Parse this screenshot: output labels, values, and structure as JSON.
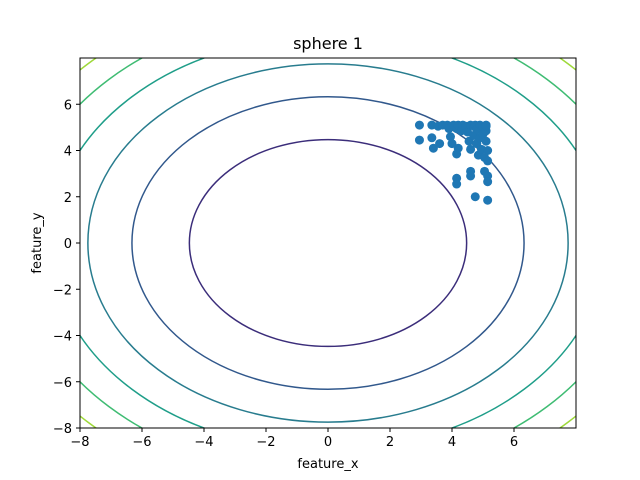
{
  "chart_data": {
    "type": "scatter",
    "title": "sphere 1",
    "xlabel": "feature_x",
    "ylabel": "feature_y",
    "xlim": [
      -8,
      8
    ],
    "ylim": [
      -8,
      8
    ],
    "x_ticks": [
      -8,
      -6,
      -4,
      -2,
      0,
      2,
      4,
      6
    ],
    "y_ticks": [
      -8,
      -6,
      -4,
      -2,
      0,
      2,
      4,
      6
    ],
    "x_tick_labels": [
      "−8",
      "−6",
      "−4",
      "−2",
      "0",
      "2",
      "4",
      "6"
    ],
    "y_tick_labels": [
      "−8",
      "−6",
      "−4",
      "−2",
      "0",
      "2",
      "4",
      "6"
    ],
    "grid": false,
    "contour": {
      "function": "x^2 + y^2",
      "levels": [
        20,
        40,
        60,
        80,
        100,
        120
      ],
      "colors": [
        "#3b2d7a",
        "#31588c",
        "#287c8e",
        "#1f9e89",
        "#3fbc73",
        "#9ed93a"
      ]
    },
    "scatter": {
      "color": "#1f77b4",
      "points": [
        [
          2.95,
          5.1
        ],
        [
          2.95,
          4.45
        ],
        [
          3.35,
          5.1
        ],
        [
          3.35,
          4.55
        ],
        [
          3.4,
          4.1
        ],
        [
          3.55,
          5.05
        ],
        [
          3.6,
          4.3
        ],
        [
          3.7,
          5.1
        ],
        [
          3.85,
          5.1
        ],
        [
          3.9,
          4.95
        ],
        [
          3.95,
          4.6
        ],
        [
          4.0,
          4.3
        ],
        [
          4.05,
          5.1
        ],
        [
          4.15,
          4.95
        ],
        [
          4.2,
          5.1
        ],
        [
          4.2,
          4.1
        ],
        [
          4.15,
          3.85
        ],
        [
          4.3,
          4.85
        ],
        [
          4.35,
          5.1
        ],
        [
          4.45,
          5.05
        ],
        [
          4.5,
          4.8
        ],
        [
          4.55,
          4.4
        ],
        [
          4.6,
          5.1
        ],
        [
          4.6,
          4.05
        ],
        [
          4.7,
          5.05
        ],
        [
          4.7,
          4.65
        ],
        [
          4.75,
          5.1
        ],
        [
          4.8,
          4.9
        ],
        [
          4.8,
          4.3
        ],
        [
          4.85,
          3.8
        ],
        [
          4.9,
          5.1
        ],
        [
          4.9,
          4.55
        ],
        [
          4.95,
          4.05
        ],
        [
          5.0,
          5.0
        ],
        [
          5.0,
          4.7
        ],
        [
          5.05,
          3.7
        ],
        [
          5.1,
          5.1
        ],
        [
          5.1,
          4.85
        ],
        [
          5.1,
          4.4
        ],
        [
          5.15,
          4.0
        ],
        [
          5.15,
          3.55
        ],
        [
          5.1,
          5.05
        ],
        [
          4.15,
          2.8
        ],
        [
          4.15,
          2.55
        ],
        [
          4.6,
          3.1
        ],
        [
          4.6,
          2.9
        ],
        [
          5.05,
          3.1
        ],
        [
          5.15,
          2.9
        ],
        [
          5.15,
          2.65
        ],
        [
          4.75,
          2.0
        ],
        [
          5.15,
          1.85
        ]
      ]
    }
  }
}
